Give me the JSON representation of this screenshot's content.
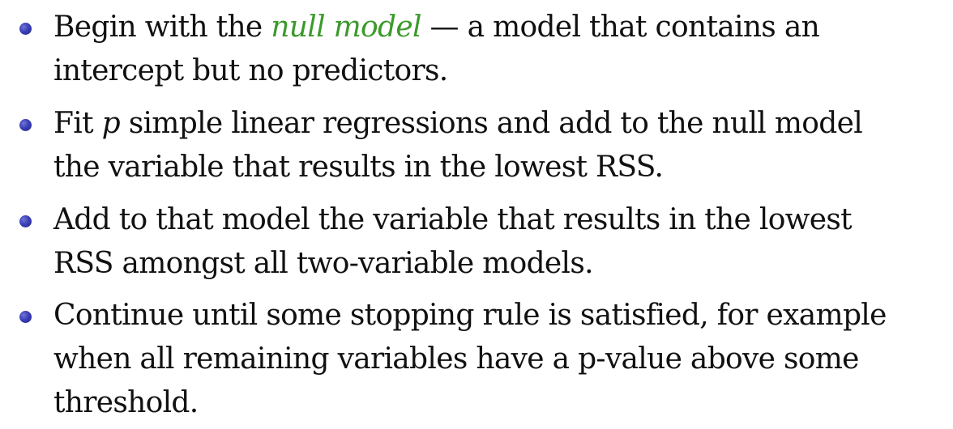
{
  "items": [
    {
      "parts": {
        "p1": "Begin with the ",
        "em": "null model",
        "p2": " — a model that contains an",
        "line2": "intercept but no predictors."
      }
    },
    {
      "parts": {
        "p1": "Fit ",
        "var": "p",
        "p2": " simple linear regressions and add to the null model",
        "line2": "the variable that results in the lowest RSS."
      }
    },
    {
      "parts": {
        "line1": "Add to that model the variable that results in the lowest",
        "line2": "RSS amongst all two-variable models."
      }
    },
    {
      "parts": {
        "line1": "Continue until some stopping rule is satisfied, for example",
        "line2": "when all remaining variables have a p-value above some",
        "line3": "threshold."
      }
    }
  ],
  "colors": {
    "emphasis": "#3b9a2b",
    "bullet": "#3b3fb5",
    "text": "#111111"
  }
}
